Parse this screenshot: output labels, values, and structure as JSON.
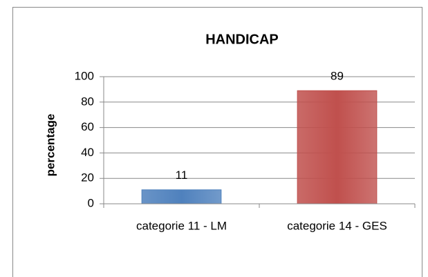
{
  "chart_data": {
    "type": "bar",
    "title": "HANDICAP",
    "y_label": "percentage",
    "categories": [
      "categorie 11 - LM",
      "categorie 14 - GES"
    ],
    "values": [
      11,
      89
    ],
    "colors": [
      "#4f81bd",
      "#c0504d"
    ],
    "ylim": [
      0,
      100
    ],
    "yticks": [
      0,
      20,
      40,
      60,
      80,
      100
    ],
    "grid": true
  }
}
